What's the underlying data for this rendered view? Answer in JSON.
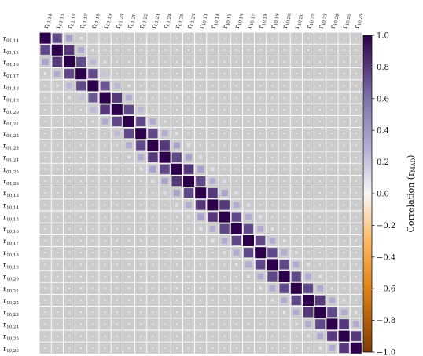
{
  "chart_data": {
    "type": "heatmap",
    "title": "",
    "labels": [
      "01,14",
      "01,15",
      "01,16",
      "01,17",
      "01,18",
      "01,19",
      "01,20",
      "01,21",
      "01,22",
      "01,23",
      "01,24",
      "01,25",
      "01,26",
      "10,13",
      "10,14",
      "10,15",
      "10,16",
      "10,17",
      "10,18",
      "10,19",
      "10,20",
      "10,21",
      "10,22",
      "10,23",
      "10,24",
      "10,25",
      "10,26"
    ],
    "label_prefix": "r",
    "grid": true,
    "background_color": "#cccccc",
    "colorbar": {
      "label_prefix": "Correlation (",
      "label_sym": "r",
      "label_sub": "MAD",
      "label_suffix": ")",
      "vmin": -1.0,
      "vmax": 1.0,
      "ticks": [
        "1.0",
        "0.8",
        "0.6",
        "0.4",
        "0.2",
        "0.0",
        "−0.2",
        "−0.4",
        "−0.6",
        "−0.8",
        "−1.0"
      ],
      "tick_values": [
        1.0,
        0.8,
        0.6,
        0.4,
        0.2,
        0.0,
        -0.2,
        -0.4,
        -0.6,
        -0.8,
        -1.0
      ],
      "colormap": "PuOr_r",
      "placement": "right"
    },
    "matrix": [
      [
        1,
        0.75,
        0.35,
        0.05,
        0,
        0,
        0,
        0,
        0,
        0,
        0,
        0,
        0,
        0,
        0,
        0,
        0,
        0,
        0,
        0,
        0,
        0,
        0,
        0,
        0,
        0,
        0
      ],
      [
        0.75,
        1,
        0.8,
        0.3,
        0.05,
        0,
        0,
        0,
        0,
        0,
        0,
        0,
        0,
        0,
        0,
        0,
        0,
        0,
        0,
        0,
        0,
        0,
        0,
        0,
        0,
        0,
        0
      ],
      [
        0.35,
        0.8,
        1,
        0.75,
        0.25,
        0.05,
        0,
        0,
        0,
        0,
        0,
        0,
        0,
        0,
        0,
        0,
        0,
        0,
        0,
        0,
        0,
        0,
        0,
        0,
        0,
        0,
        0
      ],
      [
        0.05,
        0.3,
        0.75,
        1,
        0.75,
        0.2,
        0,
        0,
        0,
        0,
        0,
        0,
        0,
        0,
        0,
        0,
        0,
        0,
        0,
        0,
        0,
        0,
        0,
        0,
        0,
        0,
        0
      ],
      [
        0,
        0.05,
        0.25,
        0.75,
        1,
        0.7,
        0.25,
        0.05,
        0,
        0,
        0,
        0,
        0,
        0,
        0,
        0,
        0,
        0,
        0,
        0,
        0,
        0,
        0,
        0,
        0,
        0,
        0
      ],
      [
        0,
        0,
        0.05,
        0.2,
        0.7,
        1,
        0.8,
        0.3,
        0,
        0,
        0,
        0,
        0,
        0,
        0,
        0,
        0,
        0,
        0,
        0,
        0,
        0,
        0,
        0,
        0,
        0,
        0
      ],
      [
        0,
        0,
        0,
        0,
        0.25,
        0.8,
        1,
        0.75,
        0.25,
        0,
        0,
        0,
        0,
        0,
        0,
        0,
        0,
        0,
        0,
        0,
        0,
        0,
        0,
        0,
        0,
        0,
        0
      ],
      [
        0,
        0,
        0,
        0,
        0.05,
        0.3,
        0.75,
        1,
        0.75,
        0.3,
        0.05,
        0,
        0,
        0,
        0,
        0,
        0,
        0,
        0,
        0,
        0,
        0,
        0,
        0,
        0,
        0,
        0
      ],
      [
        0,
        0,
        0,
        0,
        0,
        0,
        0.25,
        0.75,
        1,
        0.75,
        0.3,
        0.05,
        0,
        0,
        0,
        0,
        0,
        0,
        0,
        0,
        0,
        0,
        0,
        0,
        0,
        0,
        0
      ],
      [
        0,
        0,
        0,
        0,
        0,
        0,
        0,
        0.3,
        0.75,
        1,
        0.8,
        0.35,
        0.1,
        0,
        0,
        0,
        0,
        0,
        0,
        0,
        0,
        0,
        0,
        0,
        0,
        0,
        0
      ],
      [
        0,
        0,
        0,
        0,
        0,
        0,
        0,
        0.05,
        0.3,
        0.8,
        1,
        0.75,
        0.35,
        0.1,
        0,
        0,
        0,
        0,
        0,
        0,
        0,
        0,
        0,
        0,
        0,
        0,
        0
      ],
      [
        0,
        0,
        0,
        0,
        0,
        0,
        0,
        0,
        0.05,
        0.35,
        0.75,
        1,
        0.8,
        0.35,
        0.1,
        0,
        0,
        0,
        0,
        0,
        0,
        0,
        0,
        0,
        0,
        0,
        0
      ],
      [
        0,
        0,
        0,
        0,
        0,
        0,
        0,
        0,
        0,
        0.1,
        0.35,
        0.8,
        1,
        0.75,
        0.3,
        0.1,
        0,
        0,
        0,
        0,
        0,
        0,
        0,
        0,
        0,
        0,
        0
      ],
      [
        0,
        0,
        0,
        0,
        0,
        0,
        0,
        0,
        0,
        0,
        0.1,
        0.35,
        0.75,
        1,
        0.8,
        0.35,
        0.1,
        0,
        0,
        0,
        0,
        0,
        0,
        0,
        0,
        0,
        0
      ],
      [
        0,
        0,
        0,
        0,
        0,
        0,
        0,
        0,
        0,
        0,
        0,
        0.1,
        0.3,
        0.8,
        1,
        0.8,
        0.3,
        0.1,
        0,
        0,
        0,
        0,
        0,
        0,
        0,
        0,
        0
      ],
      [
        0,
        0,
        0,
        0,
        0,
        0,
        0,
        0,
        0,
        0,
        0,
        0,
        0.1,
        0.35,
        0.8,
        1,
        0.75,
        0.3,
        0.1,
        0,
        0,
        0,
        0,
        0,
        0,
        0,
        0
      ],
      [
        0,
        0,
        0,
        0,
        0,
        0,
        0,
        0,
        0,
        0,
        0,
        0,
        0,
        0.1,
        0.3,
        0.75,
        1,
        0.75,
        0.3,
        0.05,
        0,
        0,
        0,
        0,
        0,
        0,
        0
      ],
      [
        0,
        0,
        0,
        0,
        0,
        0,
        0,
        0,
        0,
        0,
        0,
        0,
        0,
        0,
        0.1,
        0.3,
        0.75,
        1,
        0.75,
        0.3,
        0.05,
        0,
        0,
        0,
        0,
        0,
        0
      ],
      [
        0,
        0,
        0,
        0,
        0,
        0,
        0,
        0,
        0,
        0,
        0,
        0,
        0,
        0,
        0,
        0.1,
        0.3,
        0.75,
        1,
        0.75,
        0.3,
        0.05,
        0,
        0,
        0,
        0,
        0
      ],
      [
        0,
        0,
        0,
        0,
        0,
        0,
        0,
        0,
        0,
        0,
        0,
        0,
        0,
        0,
        0,
        0,
        0.05,
        0.3,
        0.75,
        1,
        0.75,
        0.3,
        0.05,
        0,
        0,
        0,
        0
      ],
      [
        0,
        0,
        0,
        0,
        0,
        0,
        0,
        0,
        0,
        0,
        0,
        0,
        0,
        0,
        0,
        0,
        0,
        0.05,
        0.3,
        0.75,
        1,
        0.75,
        0.3,
        0.05,
        0,
        0,
        0
      ],
      [
        0,
        0,
        0,
        0,
        0,
        0,
        0,
        0,
        0,
        0,
        0,
        0,
        0,
        0,
        0,
        0,
        0,
        0,
        0.05,
        0.3,
        0.75,
        1,
        0.75,
        0.3,
        0.05,
        0,
        0
      ],
      [
        0,
        0,
        0,
        0,
        0,
        0,
        0,
        0,
        0,
        0,
        0,
        0,
        0,
        0,
        0,
        0,
        0,
        0,
        0,
        0.05,
        0.3,
        0.75,
        1,
        0.8,
        0.3,
        0.05,
        0
      ],
      [
        0,
        0,
        0,
        0,
        0,
        0,
        0,
        0,
        0,
        0,
        0,
        0,
        0,
        0,
        0,
        0,
        0,
        0,
        0,
        0,
        0.05,
        0.3,
        0.8,
        1,
        0.75,
        0.3,
        0.05
      ],
      [
        0,
        0,
        0,
        0,
        0,
        0,
        0,
        0,
        0,
        0,
        0,
        0,
        0,
        0,
        0,
        0,
        0,
        0,
        0,
        0,
        0,
        0.05,
        0.3,
        0.75,
        1,
        0.8,
        0.3
      ],
      [
        0,
        0,
        0,
        0,
        0,
        0,
        0,
        0,
        0,
        0,
        0,
        0,
        0,
        0,
        0,
        0,
        0,
        0,
        0,
        0,
        0,
        0,
        0.05,
        0.3,
        0.8,
        1,
        0.8
      ],
      [
        0,
        0,
        0,
        0,
        0,
        0,
        0,
        0,
        0,
        0,
        0,
        0,
        0,
        0,
        0,
        0,
        0,
        0,
        0,
        0,
        0,
        0,
        0,
        0.05,
        0.3,
        0.8,
        1
      ]
    ]
  }
}
